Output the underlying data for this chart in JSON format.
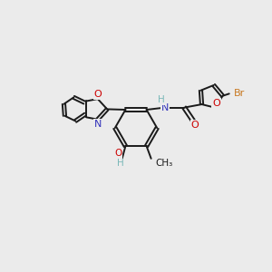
{
  "bg_color": "#ebebeb",
  "bond_color": "#1a1a1a",
  "atom_colors": {
    "N": "#3333bb",
    "O": "#cc0000",
    "Br": "#c87820",
    "H": "#7ab8b8",
    "C": "#1a1a1a"
  },
  "figsize": [
    3.0,
    3.0
  ],
  "dpi": 100
}
